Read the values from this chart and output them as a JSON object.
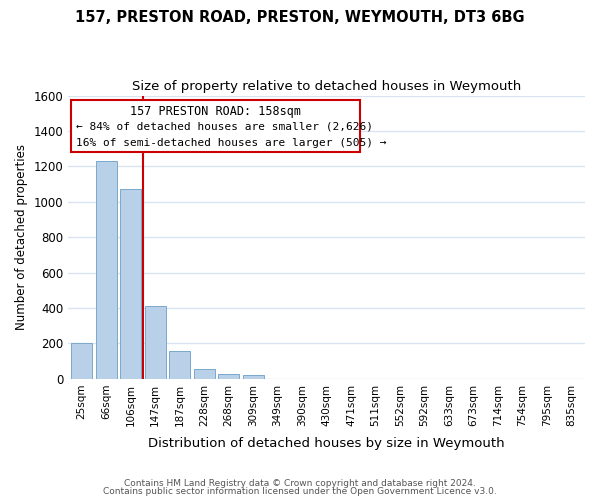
{
  "title": "157, PRESTON ROAD, PRESTON, WEYMOUTH, DT3 6BG",
  "subtitle": "Size of property relative to detached houses in Weymouth",
  "xlabel": "Distribution of detached houses by size in Weymouth",
  "ylabel": "Number of detached properties",
  "bar_labels": [
    "25sqm",
    "66sqm",
    "106sqm",
    "147sqm",
    "187sqm",
    "228sqm",
    "268sqm",
    "309sqm",
    "349sqm",
    "390sqm",
    "430sqm",
    "471sqm",
    "511sqm",
    "552sqm",
    "592sqm",
    "633sqm",
    "673sqm",
    "714sqm",
    "754sqm",
    "795sqm",
    "835sqm"
  ],
  "bar_values": [
    205,
    1230,
    1075,
    410,
    160,
    55,
    25,
    20,
    0,
    0,
    0,
    0,
    0,
    0,
    0,
    0,
    0,
    0,
    0,
    0,
    0
  ],
  "bar_color": "#b8d0e8",
  "bar_edge_color": "#7aa8cc",
  "marker_color": "#cc0000",
  "annotation_line1": "157 PRESTON ROAD: 158sqm",
  "annotation_line2": "← 84% of detached houses are smaller (2,626)",
  "annotation_line3": "16% of semi-detached houses are larger (505) →",
  "annotation_box_color": "#ffffff",
  "annotation_box_edge": "#cc0000",
  "ylim": [
    0,
    1600
  ],
  "yticks": [
    0,
    200,
    400,
    600,
    800,
    1000,
    1200,
    1400,
    1600
  ],
  "footer_line1": "Contains HM Land Registry data © Crown copyright and database right 2024.",
  "footer_line2": "Contains public sector information licensed under the Open Government Licence v3.0.",
  "bg_color": "#ffffff",
  "grid_color": "#d8e4f0",
  "figsize": [
    6.0,
    5.0
  ],
  "dpi": 100
}
